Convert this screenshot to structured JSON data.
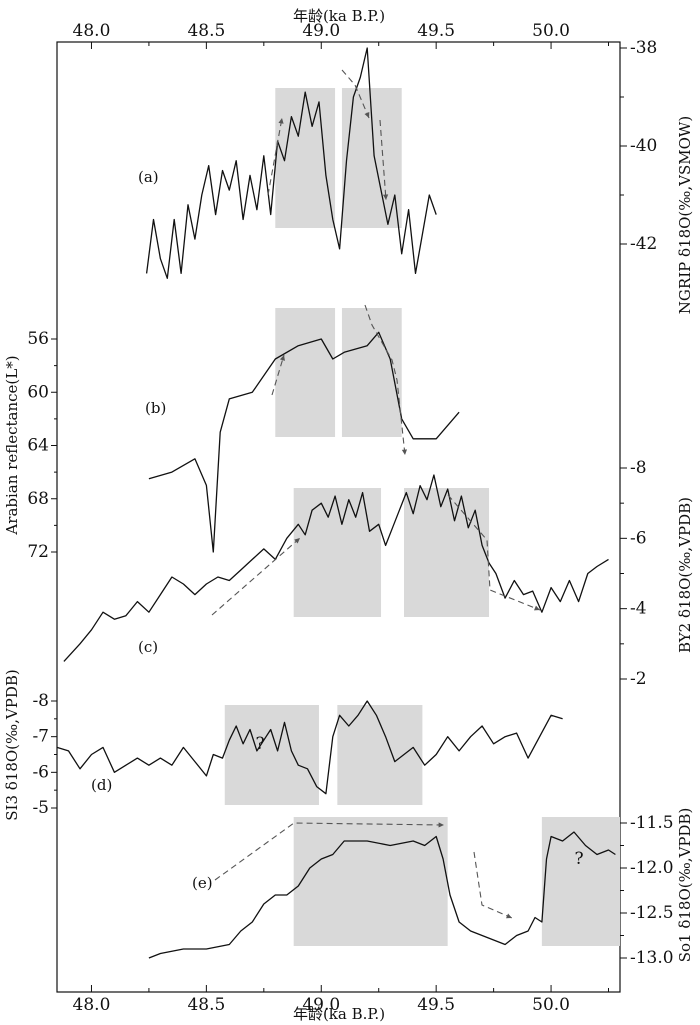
{
  "chart_data": {
    "type": "line",
    "top_axis": {
      "label": "年龄(ka B.P.)",
      "ticks": [
        "48.0",
        "48.5",
        "49.0",
        "49.5",
        "50.0"
      ],
      "tick_values": [
        48.0,
        48.5,
        49.0,
        49.5,
        50.0
      ],
      "range": [
        47.85,
        50.3
      ]
    },
    "bottom_axis": {
      "label": "年龄(ka B.P.)",
      "ticks": [
        "48.0",
        "48.5",
        "49.0",
        "49.5",
        "50.0"
      ],
      "tick_values": [
        48.0,
        48.5,
        49.0,
        49.5,
        50.0
      ],
      "range": [
        47.85,
        50.3
      ]
    },
    "axes": {
      "ngrip": {
        "label": "NGRIP δ18O(‰,VSMOW)",
        "side": "right",
        "ticks": [
          "-38",
          "-40",
          "-42"
        ],
        "tick_values": [
          -38,
          -40,
          -42
        ],
        "range": [
          -38,
          -42
        ]
      },
      "arabian": {
        "label": "Arabian reflectance(L*)",
        "side": "left",
        "ticks": [
          "56",
          "60",
          "64",
          "68",
          "72"
        ],
        "tick_values": [
          56,
          60,
          64,
          68,
          72
        ],
        "range": [
          56,
          72
        ],
        "inverted": true
      },
      "by2": {
        "label": "BY2 δ18O(‰,VPDB)",
        "side": "right",
        "ticks": [
          "-8",
          "-6",
          "-4",
          "-2"
        ],
        "tick_values": [
          -8,
          -6,
          -4,
          -2
        ],
        "range": [
          -8,
          -2
        ]
      },
      "si3": {
        "label": "SI3 δ18O(‰,VPDB)",
        "side": "left",
        "ticks": [
          "-8",
          "-7",
          "-6",
          "-5"
        ],
        "tick_values": [
          -8,
          -7,
          -6,
          -5
        ],
        "range": [
          -8,
          -5
        ]
      },
      "so1": {
        "label": "So1 δ18O(‰,VPDB)",
        "side": "right",
        "ticks": [
          "-11.5",
          "-12.0",
          "-12.5",
          "-13.0"
        ],
        "tick_values": [
          -11.5,
          -12.0,
          -12.5,
          -13.0
        ],
        "range": [
          -11.5,
          -13.0
        ]
      }
    },
    "series": [
      {
        "panel": "(a)",
        "axis": "ngrip",
        "x": [
          48.24,
          48.27,
          48.3,
          48.33,
          48.36,
          48.39,
          48.42,
          48.45,
          48.48,
          48.51,
          48.54,
          48.57,
          48.6,
          48.63,
          48.66,
          48.69,
          48.72,
          48.75,
          48.78,
          48.81,
          48.84,
          48.87,
          48.9,
          48.93,
          48.96,
          48.99,
          49.02,
          49.05,
          49.08,
          49.11,
          49.14,
          49.17,
          49.2,
          49.23,
          49.26,
          49.29,
          49.32,
          49.35,
          49.38,
          49.41,
          49.44,
          49.47,
          49.5
        ],
        "y": [
          -42.6,
          -41.5,
          -42.3,
          -42.7,
          -41.5,
          -42.6,
          -41.2,
          -41.9,
          -41.0,
          -40.4,
          -41.4,
          -40.5,
          -40.9,
          -40.3,
          -41.5,
          -40.6,
          -41.3,
          -40.2,
          -41.4,
          -39.9,
          -40.3,
          -39.4,
          -39.8,
          -38.9,
          -39.6,
          -39.1,
          -40.6,
          -41.5,
          -42.1,
          -40.3,
          -39.0,
          -38.6,
          -38.0,
          -40.2,
          -40.9,
          -41.6,
          -41.0,
          -42.2,
          -41.3,
          -42.6,
          -41.8,
          -41.0,
          -41.4
        ]
      },
      {
        "panel": "(b)",
        "axis": "arabian",
        "x": [
          48.25,
          48.35,
          48.45,
          48.5,
          48.53,
          48.56,
          48.6,
          48.7,
          48.8,
          48.9,
          49.0,
          49.05,
          49.1,
          49.2,
          49.25,
          49.3,
          49.35,
          49.4,
          49.5,
          49.6
        ],
        "y": [
          66.5,
          66.0,
          65.0,
          67.0,
          72.0,
          63.0,
          60.5,
          60.0,
          57.5,
          56.5,
          56.0,
          57.5,
          57.0,
          56.5,
          55.5,
          57.5,
          62.0,
          63.5,
          63.5,
          61.5
        ]
      },
      {
        "panel": "(c)",
        "axis": "by2",
        "x": [
          47.88,
          47.95,
          48.0,
          48.05,
          48.1,
          48.15,
          48.2,
          48.25,
          48.3,
          48.35,
          48.4,
          48.45,
          48.5,
          48.55,
          48.6,
          48.65,
          48.7,
          48.75,
          48.8,
          48.85,
          48.9,
          48.93,
          48.96,
          49.0,
          49.03,
          49.06,
          49.09,
          49.12,
          49.15,
          49.18,
          49.21,
          49.25,
          49.28,
          49.31,
          49.34,
          49.37,
          49.4,
          49.43,
          49.46,
          49.49,
          49.52,
          49.55,
          49.58,
          49.61,
          49.64,
          49.67,
          49.7,
          49.73,
          49.76,
          49.8,
          49.84,
          49.88,
          49.92,
          49.96,
          50.0,
          50.04,
          50.08,
          50.12,
          50.16,
          50.2,
          50.25
        ],
        "y": [
          -2.5,
          -3.0,
          -3.4,
          -3.9,
          -3.7,
          -3.8,
          -4.2,
          -3.9,
          -4.4,
          -4.9,
          -4.7,
          -4.4,
          -4.7,
          -4.9,
          -4.8,
          -5.1,
          -5.4,
          -5.7,
          -5.4,
          -6.0,
          -6.4,
          -6.1,
          -6.8,
          -7.0,
          -6.6,
          -7.2,
          -6.4,
          -7.1,
          -6.6,
          -7.3,
          -6.2,
          -6.4,
          -5.8,
          -6.3,
          -6.8,
          -7.3,
          -6.7,
          -7.5,
          -7.1,
          -7.8,
          -6.9,
          -7.4,
          -6.5,
          -7.2,
          -6.3,
          -6.8,
          -5.8,
          -5.3,
          -5.0,
          -4.3,
          -4.8,
          -4.4,
          -4.5,
          -3.9,
          -4.6,
          -4.2,
          -4.8,
          -4.2,
          -5.0,
          -5.2,
          -5.4
        ]
      },
      {
        "panel": "(d)",
        "axis": "si3",
        "x": [
          47.85,
          47.9,
          47.95,
          48.0,
          48.05,
          48.1,
          48.15,
          48.2,
          48.25,
          48.3,
          48.35,
          48.4,
          48.45,
          48.5,
          48.53,
          48.57,
          48.6,
          48.63,
          48.66,
          48.69,
          48.72,
          48.75,
          48.78,
          48.81,
          48.84,
          48.87,
          48.9,
          48.94,
          48.98,
          49.02,
          49.05,
          49.08,
          49.12,
          49.16,
          49.2,
          49.24,
          49.28,
          49.32,
          49.36,
          49.4,
          49.45,
          49.5,
          49.55,
          49.6,
          49.65,
          49.7,
          49.75,
          49.8,
          49.85,
          49.9,
          49.95,
          50.0,
          50.05
        ],
        "y": [
          -6.7,
          -6.6,
          -6.1,
          -6.5,
          -6.7,
          -6.0,
          -6.2,
          -6.4,
          -6.2,
          -6.4,
          -6.2,
          -6.7,
          -6.3,
          -5.9,
          -6.5,
          -6.4,
          -6.9,
          -7.3,
          -6.8,
          -7.2,
          -6.6,
          -6.9,
          -7.2,
          -6.6,
          -7.4,
          -6.6,
          -6.2,
          -6.1,
          -5.6,
          -5.4,
          -7.0,
          -7.6,
          -7.3,
          -7.6,
          -8.0,
          -7.6,
          -7.0,
          -6.3,
          -6.5,
          -6.7,
          -6.2,
          -6.5,
          -7.0,
          -6.6,
          -7.0,
          -7.3,
          -6.8,
          -7.0,
          -7.1,
          -6.4,
          -7.0,
          -7.6,
          -7.5
        ]
      },
      {
        "panel": "(e)",
        "axis": "so1",
        "x": [
          48.25,
          48.3,
          48.4,
          48.5,
          48.6,
          48.65,
          48.7,
          48.75,
          48.8,
          48.85,
          48.9,
          48.95,
          49.0,
          49.05,
          49.1,
          49.2,
          49.3,
          49.4,
          49.45,
          49.5,
          49.53,
          49.56,
          49.6,
          49.65,
          49.7,
          49.75,
          49.8,
          49.85,
          49.9,
          49.93,
          49.96,
          49.98,
          50.0,
          50.05,
          50.1,
          50.15,
          50.2,
          50.25,
          50.28
        ],
        "y": [
          -13.0,
          -12.95,
          -12.9,
          -12.9,
          -12.85,
          -12.7,
          -12.6,
          -12.4,
          -12.3,
          -12.3,
          -12.2,
          -12.0,
          -11.9,
          -11.85,
          -11.7,
          -11.7,
          -11.75,
          -11.7,
          -11.75,
          -11.65,
          -11.9,
          -12.3,
          -12.6,
          -12.7,
          -12.75,
          -12.8,
          -12.85,
          -12.75,
          -12.7,
          -12.55,
          -12.6,
          -11.9,
          -11.65,
          -11.7,
          -11.6,
          -11.75,
          -11.85,
          -11.8,
          -11.85
        ]
      }
    ],
    "shaded_intervals": [
      {
        "panel": "(a)",
        "x": [
          48.8,
          49.06
        ]
      },
      {
        "panel": "(a)",
        "x": [
          49.09,
          49.35
        ]
      },
      {
        "panel": "(b)",
        "x": [
          48.8,
          49.06
        ]
      },
      {
        "panel": "(b)",
        "x": [
          49.09,
          49.35
        ]
      },
      {
        "panel": "(c)",
        "x": [
          48.88,
          49.26
        ]
      },
      {
        "panel": "(c)",
        "x": [
          49.36,
          49.73
        ]
      },
      {
        "panel": "(d)",
        "x": [
          48.58,
          48.99
        ]
      },
      {
        "panel": "(d)",
        "x": [
          49.07,
          49.44
        ]
      },
      {
        "panel": "(e)",
        "x": [
          48.88,
          49.55
        ]
      },
      {
        "panel": "(e)",
        "x": [
          49.96,
          50.3
        ]
      }
    ],
    "panel_labels": [
      "(a)",
      "(b)",
      "(c)",
      "(d)",
      "(e)"
    ],
    "annotations": [
      "?",
      "?"
    ],
    "grid": false,
    "legend": "none"
  }
}
